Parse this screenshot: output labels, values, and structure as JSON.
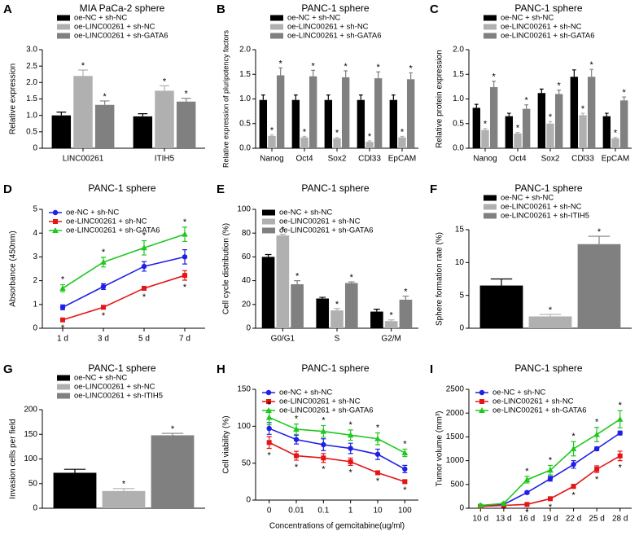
{
  "chart_data": [
    {
      "type": "bar",
      "label": "A",
      "title": "MIA PaCa-2 sphere",
      "ylabel": "Relative expression",
      "legend": "top",
      "categories": [
        "LINC00261",
        "ITIH5"
      ],
      "ylim": [
        0,
        3
      ],
      "yticks": [
        0,
        0.5,
        {
          "value": 1,
          "label": "1.0"
        },
        1.5,
        {
          "value": 2,
          "label": "2.0"
        },
        2.5,
        {
          "value": 3,
          "label": "3.0"
        }
      ],
      "series": [
        {
          "name": "oe-NC + sh-NC",
          "color": "#000000",
          "values": [
            1.0,
            0.97
          ],
          "errors": [
            0.1,
            0.08
          ],
          "stars": [
            null,
            null
          ]
        },
        {
          "name": "oe-LINC00261 + sh-NC",
          "color": "#b0b0b0",
          "values": [
            2.2,
            1.75
          ],
          "errors": [
            0.18,
            0.15
          ],
          "stars": [
            "*",
            "*"
          ]
        },
        {
          "name": "oe-LINC00261 + sh-GATA6",
          "color": "#808080",
          "values": [
            1.32,
            1.42
          ],
          "errors": [
            0.12,
            0.1
          ],
          "stars": [
            "*",
            "*"
          ]
        }
      ]
    },
    {
      "type": "bar",
      "label": "B",
      "title": "PANC-1 sphere",
      "ylabel": "Relative expression of pluripotency factors",
      "legend": "top",
      "categories": [
        "Nanog",
        "Oct4",
        "Sox2",
        "CDl33",
        "EpCAM"
      ],
      "ylim": [
        0,
        2
      ],
      "yticks": [
        {
          "value": 0,
          "label": "0.0"
        },
        0.5,
        {
          "value": 1,
          "label": "1.0"
        },
        1.5,
        {
          "value": 2,
          "label": "2.0"
        }
      ],
      "series": [
        {
          "name": "oe-NC + sh-NC",
          "color": "#000000",
          "values": [
            0.98,
            0.98,
            0.98,
            0.98,
            0.98
          ],
          "errors": [
            0.1,
            0.1,
            0.1,
            0.1,
            0.1
          ],
          "stars": [
            null,
            null,
            null,
            null,
            null
          ]
        },
        {
          "name": "oe-LINC00261 + sh-NC",
          "color": "#b0b0b0",
          "values": [
            0.25,
            0.22,
            0.2,
            0.13,
            0.22
          ],
          "errors": [
            0.02,
            0.02,
            0.02,
            0.02,
            0.02
          ],
          "stars": [
            "*",
            "*",
            "*",
            "*",
            "*"
          ]
        },
        {
          "name": "oe-LINC00261 + sh-GATA6",
          "color": "#808080",
          "values": [
            1.48,
            1.46,
            1.44,
            1.42,
            1.4
          ],
          "errors": [
            0.15,
            0.12,
            0.13,
            0.13,
            0.13
          ],
          "stars": [
            "*",
            "*",
            "*",
            "*",
            "*"
          ]
        }
      ]
    },
    {
      "type": "bar",
      "label": "C",
      "title": "PANC-1 sphere",
      "ylabel": "Relative protein expression",
      "legend": "top",
      "categories": [
        "Nanog",
        "Oct4",
        "Sox2",
        "CDl33",
        "EpCAM"
      ],
      "ylim": [
        0,
        2
      ],
      "yticks": [
        {
          "value": 0,
          "label": "0.0"
        },
        0.5,
        {
          "value": 1,
          "label": "1.0"
        },
        1.5,
        {
          "value": 2,
          "label": "2.0"
        }
      ],
      "series": [
        {
          "name": "oe-NC + sh-NC",
          "color": "#000000",
          "values": [
            0.82,
            0.65,
            1.12,
            1.45,
            0.65
          ],
          "errors": [
            0.07,
            0.06,
            0.08,
            0.14,
            0.06
          ],
          "stars": [
            null,
            null,
            null,
            null,
            null
          ]
        },
        {
          "name": "oe-LINC00261 + sh-NC",
          "color": "#b0b0b0",
          "values": [
            0.37,
            0.3,
            0.5,
            0.67,
            0.2
          ],
          "errors": [
            0.03,
            0.02,
            0.04,
            0.04,
            0.02
          ],
          "stars": [
            "*",
            "*",
            "*",
            "*",
            "*"
          ]
        },
        {
          "name": "oe-LINC00261 + sh-GATA6",
          "color": "#808080",
          "values": [
            1.24,
            0.8,
            1.1,
            1.45,
            0.97
          ],
          "errors": [
            0.12,
            0.08,
            0.08,
            0.15,
            0.07
          ],
          "stars": [
            "*",
            "*",
            "*",
            "*",
            "*"
          ]
        }
      ]
    },
    {
      "type": "line",
      "label": "D",
      "title": "PANC-1 sphere",
      "ylabel": "Absorbance (450nm)",
      "legend": "upper left",
      "categories": [
        "1 d",
        "3 d",
        "5 d",
        "7 d"
      ],
      "ylim": [
        0,
        5
      ],
      "yticks": [
        0,
        1,
        2,
        3,
        4,
        5
      ],
      "series": [
        {
          "name": "oe-NC + sh-NC",
          "color": "#1f1fe6",
          "marker": "circle",
          "values": [
            0.88,
            1.75,
            2.6,
            3.0
          ],
          "errors": [
            0.1,
            0.12,
            0.2,
            0.3
          ],
          "stars": [
            null,
            null,
            null,
            null
          ],
          "star_side": "above"
        },
        {
          "name": "oe-LINC00261 + sh-NC",
          "color": "#e61414",
          "marker": "square",
          "values": [
            0.35,
            0.88,
            1.68,
            2.22
          ],
          "errors": [
            0.05,
            0.06,
            0.08,
            0.2
          ],
          "stars": [
            "*",
            "*",
            "*",
            "*"
          ],
          "star_side": "below"
        },
        {
          "name": "oe-LINC00261 + sh-GATA6",
          "color": "#1ec81e",
          "marker": "triangle",
          "values": [
            1.68,
            2.78,
            3.38,
            3.95
          ],
          "errors": [
            0.15,
            0.2,
            0.3,
            0.3
          ],
          "stars": [
            "*",
            "*",
            "*",
            "*"
          ],
          "star_side": "above"
        }
      ]
    },
    {
      "type": "bar",
      "label": "E",
      "title": "PANC-1 sphere",
      "ylabel": "Cell cycle distribution (%)",
      "legend": "upper left",
      "categories": [
        "G0/G1",
        "S",
        "G2/M"
      ],
      "ylim": [
        0,
        100
      ],
      "yticks": [
        0,
        20,
        40,
        60,
        80,
        100
      ],
      "series": [
        {
          "name": "oe-NC + sh-NC",
          "color": "#000000",
          "values": [
            60,
            25,
            14
          ],
          "errors": [
            2,
            1,
            2
          ],
          "stars": [
            null,
            null,
            null
          ]
        },
        {
          "name": "oe-LINC00261 + sh-NC",
          "color": "#b0b0b0",
          "values": [
            78,
            15,
            6
          ],
          "errors": [
            1,
            1.5,
            1
          ],
          "stars": [
            "*",
            "*",
            "*"
          ]
        },
        {
          "name": "oe-LINC00261 + sh-GATA6",
          "color": "#808080",
          "values": [
            37,
            38,
            24
          ],
          "errors": [
            3,
            1,
            3
          ],
          "stars": [
            "*",
            "*",
            "*"
          ]
        }
      ]
    },
    {
      "type": "bar",
      "label": "F",
      "title": "PANC-1 sphere",
      "ylabel": "Sphere formation rate (%)",
      "legend": "top",
      "categories": [
        null
      ],
      "ylim": [
        0,
        15
      ],
      "yticks": [
        0,
        5,
        10,
        15
      ],
      "series": [
        {
          "name": "oe-NC + sh-NC",
          "color": "#000000",
          "values": [
            6.5
          ],
          "errors": [
            1
          ],
          "stars": [
            null
          ]
        },
        {
          "name": "oe-LINC00261 + sh-NC",
          "color": "#b0b0b0",
          "values": [
            1.8
          ],
          "errors": [
            0.3
          ],
          "stars": [
            "*"
          ]
        },
        {
          "name": "oe-LINC00261 + sh-ITIH5",
          "color": "#808080",
          "values": [
            12.8
          ],
          "errors": [
            1.2
          ],
          "stars": [
            "*"
          ]
        }
      ]
    },
    {
      "type": "bar",
      "label": "G",
      "title": "PANC-1 sphere",
      "ylabel": "Invasion cells per field",
      "legend": "top",
      "categories": [
        null
      ],
      "ylim": [
        0,
        200
      ],
      "yticks": [
        0,
        50,
        100,
        150,
        200
      ],
      "series": [
        {
          "name": "oe-NC + sh-NC",
          "color": "#000000",
          "values": [
            72
          ],
          "errors": [
            7
          ],
          "stars": [
            null
          ]
        },
        {
          "name": "oe-LINC00261 + sh-NC",
          "color": "#b0b0b0",
          "values": [
            35
          ],
          "errors": [
            5
          ],
          "stars": [
            "*"
          ]
        },
        {
          "name": "oe-LINC00261 + sh-ITIH5",
          "color": "#808080",
          "values": [
            148
          ],
          "errors": [
            4
          ],
          "stars": [
            "*"
          ]
        }
      ]
    },
    {
      "type": "line",
      "label": "H",
      "title": "PANC-1 sphere",
      "ylabel": "Cell viability (%)",
      "xlabel": "Concentrations of gemcitabine(ug/ml)",
      "legend": "upper left",
      "categories": [
        "0",
        "0.01",
        "0.1",
        "1",
        "10",
        "100"
      ],
      "ylim": [
        0,
        150
      ],
      "yticks": [
        0,
        50,
        100,
        150
      ],
      "series": [
        {
          "name": "oe-NC + sh-NC",
          "color": "#1f1fe6",
          "marker": "circle",
          "values": [
            97,
            82,
            75,
            70,
            62,
            42
          ],
          "errors": [
            8,
            6,
            8,
            7,
            7,
            5
          ],
          "stars": [
            null,
            null,
            null,
            null,
            null,
            null
          ],
          "star_side": "above"
        },
        {
          "name": "oe-LINC00261 + sh-NC",
          "color": "#e61414",
          "marker": "square",
          "values": [
            78,
            60,
            57,
            52,
            37,
            25
          ],
          "errors": [
            8,
            6,
            6,
            5,
            2,
            2
          ],
          "stars": [
            "*",
            "*",
            "*",
            "*",
            "*",
            "*"
          ],
          "star_side": "below"
        },
        {
          "name": "oe-LINC00261 + sh-GATA6",
          "color": "#1ec81e",
          "marker": "triangle",
          "values": [
            112,
            96,
            93,
            88,
            83,
            64
          ],
          "errors": [
            10,
            7,
            8,
            7,
            8,
            5
          ],
          "stars": [
            "*",
            "*",
            "*",
            "*",
            "*",
            "*"
          ],
          "star_side": "above"
        }
      ]
    },
    {
      "type": "line",
      "label": "I",
      "title": "PANC-1 sphere",
      "ylabel": "Tumor volume (mm³)",
      "legend": "upper left",
      "categories": [
        "10 d",
        "13 d",
        "16 d",
        "19 d",
        "22 d",
        "25 d",
        "28 d"
      ],
      "ylim": [
        0,
        2500
      ],
      "yticks": [
        0,
        500,
        1000,
        1500,
        2000,
        2500
      ],
      "series": [
        {
          "name": "oe-NC + sh-NC",
          "color": "#1f1fe6",
          "marker": "circle",
          "values": [
            50,
            80,
            330,
            620,
            920,
            1250,
            1580
          ],
          "errors": [
            20,
            20,
            30,
            50,
            80,
            40,
            40
          ],
          "stars": [
            null,
            null,
            null,
            null,
            null,
            null,
            null
          ],
          "star_side": "above"
        },
        {
          "name": "oe-LINC00261 + sh-NC",
          "color": "#e61414",
          "marker": "square",
          "values": [
            40,
            60,
            80,
            200,
            460,
            820,
            1100
          ],
          "errors": [
            15,
            15,
            20,
            30,
            40,
            70,
            100
          ],
          "stars": [
            null,
            null,
            "*",
            "*",
            "*",
            "*",
            "*"
          ],
          "star_side": "below"
        },
        {
          "name": "oe-LINC00261 + sh-GATA6",
          "color": "#1ec81e",
          "marker": "triangle",
          "values": [
            60,
            100,
            600,
            800,
            1250,
            1550,
            1870
          ],
          "errors": [
            20,
            25,
            70,
            100,
            150,
            150,
            180
          ],
          "stars": [
            null,
            null,
            "*",
            "*",
            "*",
            "*",
            "*"
          ],
          "star_side": "above"
        }
      ]
    }
  ]
}
